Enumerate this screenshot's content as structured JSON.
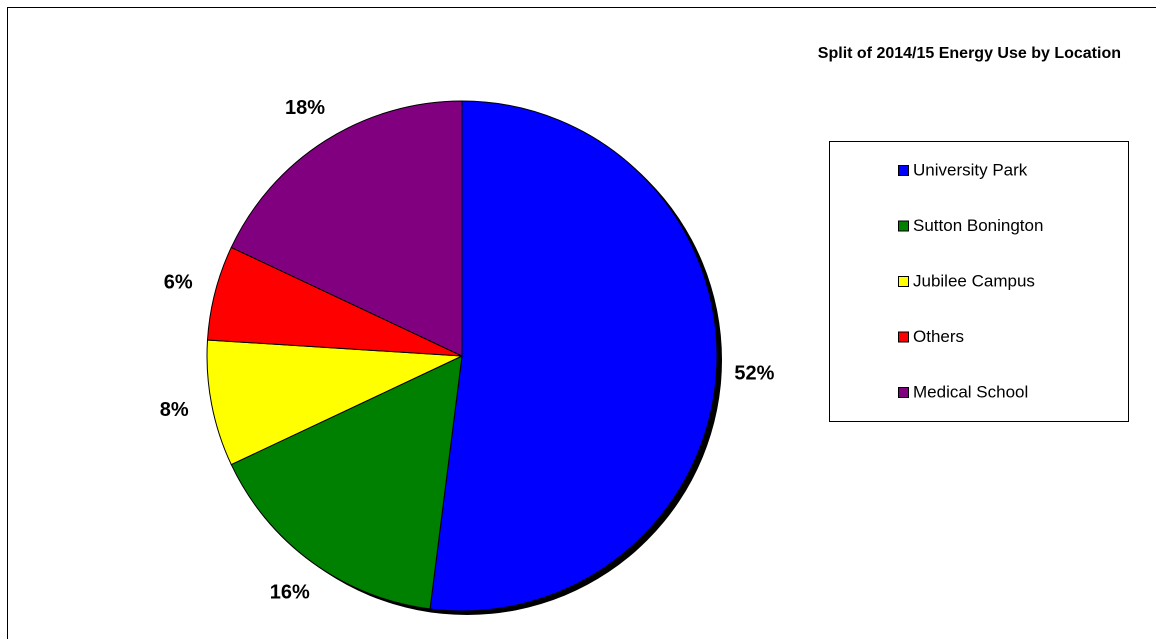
{
  "chart_data": {
    "type": "pie",
    "title": "Split of 2014/15 Energy Use by Location",
    "categories": [
      "University Park",
      "Sutton Bonington",
      "Jubilee Campus",
      "Others",
      "Medical School"
    ],
    "values": [
      52,
      16,
      8,
      6,
      18
    ],
    "value_labels": [
      "52%",
      "16%",
      "8%",
      "6%",
      "18%"
    ],
    "colors": [
      "#0000ff",
      "#008000",
      "#ffff00",
      "#ff0000",
      "#800080"
    ],
    "legend": "right"
  }
}
